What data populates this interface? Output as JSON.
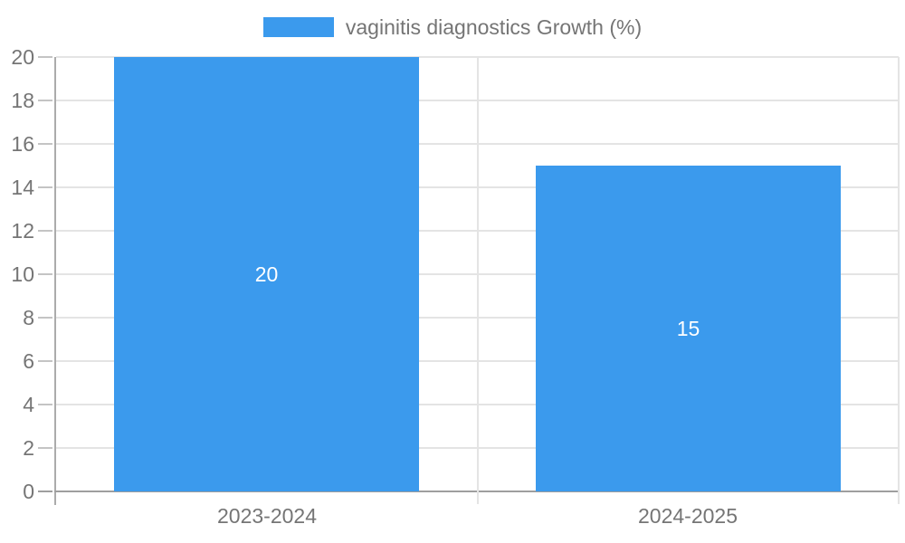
{
  "chart_data": {
    "type": "bar",
    "title": "vaginitis diagnostics Growth (%)",
    "categories": [
      "2023-2024",
      "2024-2025"
    ],
    "values": [
      20,
      15
    ],
    "data_labels": [
      "20",
      "15"
    ],
    "y_tick_labels": [
      "0",
      "2",
      "4",
      "6",
      "8",
      "10",
      "12",
      "14",
      "16",
      "18",
      "20"
    ],
    "xlabel": "",
    "ylabel": "",
    "ylim": [
      0,
      20
    ],
    "ytick_step": 2,
    "grid": true,
    "legend_position": "top",
    "colors": {
      "bar": "#3b9aed",
      "bar_value_text": "#ffffff",
      "axis_text": "#757575",
      "gridline": "#e4e4e4",
      "axis_line": "#ababab",
      "baseline": "#9e9e9e"
    }
  }
}
